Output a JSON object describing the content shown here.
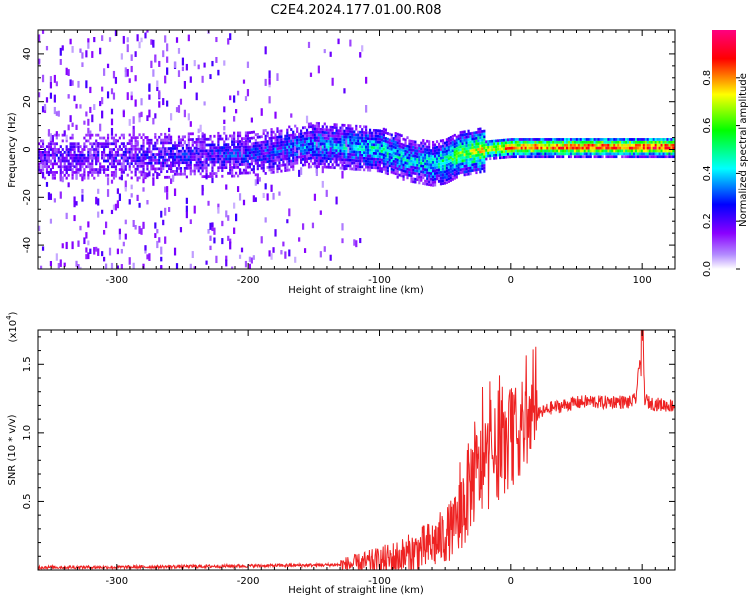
{
  "title": "C2E4.2024.177.01.00.R08",
  "chart_data": [
    {
      "type": "heatmap",
      "xlabel": "Height of straight line (km)",
      "ylabel": "Frequency (Hz)",
      "xlim": [
        -360,
        125
      ],
      "ylim": [
        -50,
        50
      ],
      "xticks": [
        -300,
        -200,
        -100,
        0,
        100
      ],
      "yticks": [
        -40,
        -20,
        0,
        20,
        40
      ],
      "colorbar": {
        "label": "Normalized spectral amplitude",
        "range": [
          0,
          1
        ],
        "ticks": [
          0.0,
          0.2,
          0.4,
          0.6,
          0.8
        ],
        "colormap": [
          "#ffffff",
          "#8a00ff",
          "#0000ff",
          "#00ffff",
          "#00ff00",
          "#ffff00",
          "#ff0000",
          "#ff0080"
        ]
      },
      "signal_trace": {
        "description_points_x": [
          -360,
          -300,
          -200,
          -150,
          -100,
          -80,
          -60,
          -50,
          -40,
          -20,
          0,
          50,
          100,
          125
        ],
        "center_freq_hz": [
          -3,
          -3,
          -2,
          2,
          0,
          -4,
          -6,
          -5,
          -2,
          0,
          1,
          1,
          1,
          1
        ],
        "amplitude": [
          0.15,
          0.18,
          0.25,
          0.35,
          0.45,
          0.4,
          0.45,
          0.5,
          0.6,
          0.75,
          0.85,
          0.9,
          0.95,
          0.95
        ]
      }
    },
    {
      "type": "line",
      "xlabel": "Height of straight line (km)",
      "ylabel": "SNR (10 * v/v)",
      "y_multiplier_label": "(x10",
      "y_multiplier_exp": "4",
      "y_multiplier_close": ")",
      "xlim": [
        -360,
        125
      ],
      "ylim": [
        0,
        1.75
      ],
      "xticks": [
        -300,
        -200,
        -100,
        0,
        100
      ],
      "yticks": [
        0.5,
        1.0,
        1.5
      ],
      "ytick_labels": [
        "0.5",
        "1.0",
        "1.5"
      ],
      "series": [
        {
          "color": "#ee2222",
          "x": [
            -360,
            -300,
            -250,
            -200,
            -150,
            -120,
            -100,
            -90,
            -80,
            -70,
            -60,
            -50,
            -40,
            -35,
            -30,
            -25,
            -20,
            -15,
            -10,
            -5,
            0,
            10,
            20,
            30,
            40,
            50,
            60,
            70,
            80,
            90,
            95,
            98,
            100,
            102,
            105,
            110,
            120,
            125
          ],
          "y": [
            0.02,
            0.02,
            0.025,
            0.03,
            0.035,
            0.04,
            0.06,
            0.08,
            0.1,
            0.14,
            0.18,
            0.25,
            0.35,
            0.5,
            0.65,
            0.7,
            0.75,
            0.82,
            0.85,
            0.9,
            0.95,
            1.05,
            1.13,
            1.18,
            1.2,
            1.22,
            1.23,
            1.22,
            1.23,
            1.22,
            1.24,
            1.5,
            1.75,
            1.25,
            1.22,
            1.21,
            1.2,
            1.2
          ]
        }
      ]
    }
  ]
}
